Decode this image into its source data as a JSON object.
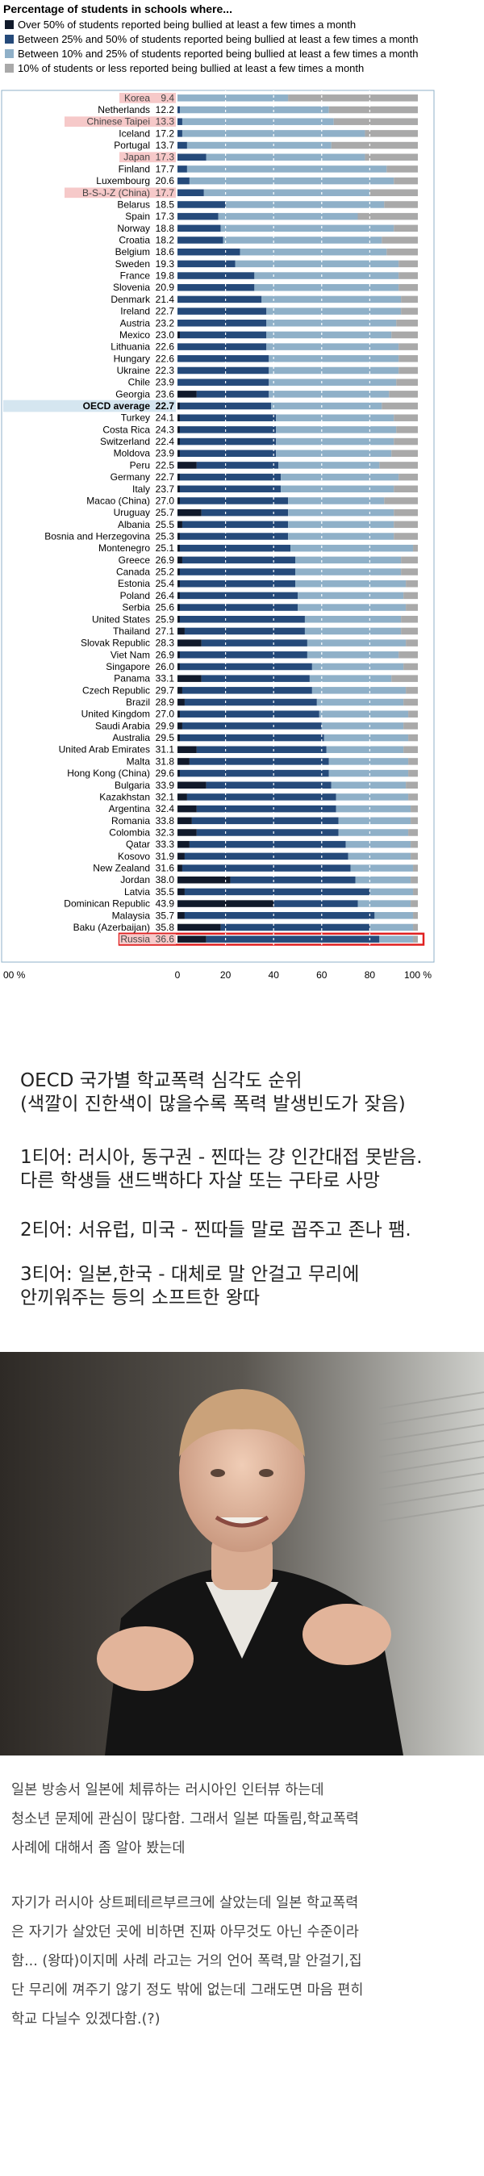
{
  "legend": {
    "title": "Percentage of students in schools where...",
    "items": [
      {
        "label": "Over 50% of students reported being bullied at least a few times a month",
        "color": "#111a2b"
      },
      {
        "label": "Between 25% and 50% of students reported being bullied at least a few times a month",
        "color": "#254a7a"
      },
      {
        "label": "Between 10% and 25% of students reported being bullied at least a few times a month",
        "color": "#8fb0c8"
      },
      {
        "label": "10% of students or less reported being bullied at least a few times a month",
        "color": "#a9a9a9"
      }
    ]
  },
  "chart_data": {
    "type": "bar",
    "orientation": "horizontal",
    "stacked": true,
    "x_ticks": [
      "0",
      "20",
      "40",
      "60",
      "80",
      "100 %"
    ],
    "left_tick": "00 %",
    "xlim": [
      0,
      100
    ],
    "series": [
      {
        "name": "Over 50% of students reported being bullied at least a few times a month",
        "color": "#111a2b"
      },
      {
        "name": "Between 25% and 50% of students reported being bullied at least a few times a month",
        "color": "#254a7a"
      },
      {
        "name": "Between 10% and 25% of students reported being bullied at least a few times a month",
        "color": "#8fb0c8"
      },
      {
        "name": "10% of students or less reported being bullied at least a few times a month",
        "color": "#a9a9a9"
      }
    ],
    "rows": [
      {
        "country": "Korea",
        "value": "9.4",
        "seg": [
          0,
          0,
          46,
          54
        ],
        "hl": "pink"
      },
      {
        "country": "Netherlands",
        "value": "12.2",
        "seg": [
          0,
          1,
          62,
          37
        ]
      },
      {
        "country": "Chinese Taipei",
        "value": "13.3",
        "seg": [
          0,
          2,
          63,
          35
        ],
        "hl": "pink"
      },
      {
        "country": "Iceland",
        "value": "17.2",
        "seg": [
          0,
          2,
          76,
          22
        ]
      },
      {
        "country": "Portugal",
        "value": "13.7",
        "seg": [
          0,
          4,
          60,
          36
        ]
      },
      {
        "country": "Japan",
        "value": "17.3",
        "seg": [
          0,
          12,
          66,
          22
        ],
        "hl": "pink"
      },
      {
        "country": "Finland",
        "value": "17.7",
        "seg": [
          0,
          4,
          83,
          13
        ]
      },
      {
        "country": "Luxembourg",
        "value": "20.6",
        "seg": [
          0,
          5,
          85,
          10
        ]
      },
      {
        "country": "B-S-J-Z (China)",
        "value": "17.7",
        "seg": [
          0,
          11,
          69,
          20
        ],
        "hl": "pink"
      },
      {
        "country": "Belarus",
        "value": "18.5",
        "seg": [
          0,
          20,
          66,
          14
        ]
      },
      {
        "country": "Spain",
        "value": "17.3",
        "seg": [
          0,
          17,
          58,
          25
        ]
      },
      {
        "country": "Norway",
        "value": "18.8",
        "seg": [
          0,
          18,
          72,
          10
        ]
      },
      {
        "country": "Croatia",
        "value": "18.2",
        "seg": [
          0,
          19,
          66,
          15
        ]
      },
      {
        "country": "Belgium",
        "value": "18.6",
        "seg": [
          0,
          26,
          61,
          13
        ]
      },
      {
        "country": "Sweden",
        "value": "19.3",
        "seg": [
          0,
          24,
          68,
          8
        ]
      },
      {
        "country": "France",
        "value": "19.8",
        "seg": [
          0,
          32,
          60,
          8
        ]
      },
      {
        "country": "Slovenia",
        "value": "20.9",
        "seg": [
          0,
          32,
          60,
          8
        ]
      },
      {
        "country": "Denmark",
        "value": "21.4",
        "seg": [
          0,
          35,
          58,
          7
        ]
      },
      {
        "country": "Ireland",
        "value": "22.7",
        "seg": [
          0,
          37,
          56,
          7
        ]
      },
      {
        "country": "Austria",
        "value": "23.2",
        "seg": [
          0,
          37,
          54,
          9
        ]
      },
      {
        "country": "Mexico",
        "value": "23.0",
        "seg": [
          1,
          36,
          52,
          11
        ]
      },
      {
        "country": "Lithuania",
        "value": "22.6",
        "seg": [
          0,
          37,
          55,
          8
        ]
      },
      {
        "country": "Hungary",
        "value": "22.6",
        "seg": [
          0,
          38,
          54,
          8
        ]
      },
      {
        "country": "Ukraine",
        "value": "22.3",
        "seg": [
          0,
          38,
          54,
          8
        ]
      },
      {
        "country": "Chile",
        "value": "23.9",
        "seg": [
          0,
          38,
          53,
          9
        ]
      },
      {
        "country": "Georgia",
        "value": "23.6",
        "seg": [
          8,
          30,
          50,
          12
        ]
      },
      {
        "country": "OECD average",
        "value": "22.7",
        "seg": [
          1,
          38,
          46,
          15
        ],
        "hl": "blue",
        "bold": true
      },
      {
        "country": "Turkey",
        "value": "24.1",
        "seg": [
          1,
          40,
          49,
          10
        ]
      },
      {
        "country": "Costa Rica",
        "value": "24.3",
        "seg": [
          1,
          40,
          50,
          9
        ]
      },
      {
        "country": "Switzerland",
        "value": "22.4",
        "seg": [
          1,
          40,
          49,
          10
        ]
      },
      {
        "country": "Moldova",
        "value": "23.9",
        "seg": [
          1,
          40,
          48,
          11
        ]
      },
      {
        "country": "Peru",
        "value": "22.5",
        "seg": [
          8,
          34,
          42,
          16
        ]
      },
      {
        "country": "Germany",
        "value": "22.7",
        "seg": [
          1,
          42,
          49,
          8
        ]
      },
      {
        "country": "Italy",
        "value": "23.7",
        "seg": [
          1,
          42,
          47,
          10
        ]
      },
      {
        "country": "Macao (China)",
        "value": "27.0",
        "seg": [
          1,
          45,
          40,
          14
        ]
      },
      {
        "country": "Uruguay",
        "value": "25.7",
        "seg": [
          10,
          36,
          44,
          10
        ]
      },
      {
        "country": "Albania",
        "value": "25.5",
        "seg": [
          2,
          44,
          44,
          10
        ]
      },
      {
        "country": "Bosnia and Herzegovina",
        "value": "25.3",
        "seg": [
          1,
          45,
          44,
          10
        ]
      },
      {
        "country": "Montenegro",
        "value": "25.1",
        "seg": [
          1,
          46,
          51,
          2
        ]
      },
      {
        "country": "Greece",
        "value": "26.9",
        "seg": [
          2,
          47,
          44,
          7
        ]
      },
      {
        "country": "Canada",
        "value": "25.2",
        "seg": [
          1,
          48,
          44,
          7
        ]
      },
      {
        "country": "Estonia",
        "value": "25.4",
        "seg": [
          1,
          48,
          46,
          5
        ]
      },
      {
        "country": "Poland",
        "value": "26.4",
        "seg": [
          1,
          49,
          44,
          6
        ]
      },
      {
        "country": "Serbia",
        "value": "25.6",
        "seg": [
          1,
          49,
          45,
          5
        ]
      },
      {
        "country": "United States",
        "value": "25.9",
        "seg": [
          1,
          52,
          40,
          7
        ]
      },
      {
        "country": "Thailand",
        "value": "27.1",
        "seg": [
          3,
          50,
          40,
          7
        ]
      },
      {
        "country": "Slovak Republic",
        "value": "28.3",
        "seg": [
          10,
          44,
          41,
          5
        ]
      },
      {
        "country": "Viet Nam",
        "value": "26.9",
        "seg": [
          1,
          53,
          38,
          8
        ]
      },
      {
        "country": "Singapore",
        "value": "26.0",
        "seg": [
          1,
          55,
          38,
          6
        ]
      },
      {
        "country": "Panama",
        "value": "33.1",
        "seg": [
          10,
          45,
          34,
          11
        ]
      },
      {
        "country": "Czech Republic",
        "value": "29.7",
        "seg": [
          2,
          54,
          39,
          5
        ]
      },
      {
        "country": "Brazil",
        "value": "28.9",
        "seg": [
          3,
          55,
          36,
          6
        ]
      },
      {
        "country": "United Kingdom",
        "value": "27.0",
        "seg": [
          1,
          58,
          37,
          4
        ]
      },
      {
        "country": "Saudi Arabia",
        "value": "29.9",
        "seg": [
          2,
          58,
          34,
          6
        ]
      },
      {
        "country": "Australia",
        "value": "29.5",
        "seg": [
          1,
          60,
          35,
          4
        ]
      },
      {
        "country": "United Arab Emirates",
        "value": "31.1",
        "seg": [
          8,
          54,
          32,
          6
        ]
      },
      {
        "country": "Malta",
        "value": "31.8",
        "seg": [
          5,
          58,
          33,
          4
        ]
      },
      {
        "country": "Hong Kong (China)",
        "value": "29.6",
        "seg": [
          1,
          62,
          33,
          4
        ]
      },
      {
        "country": "Bulgaria",
        "value": "33.9",
        "seg": [
          12,
          52,
          31,
          5
        ]
      },
      {
        "country": "Kazakhstan",
        "value": "32.1",
        "seg": [
          4,
          62,
          30,
          4
        ]
      },
      {
        "country": "Argentina",
        "value": "32.4",
        "seg": [
          8,
          58,
          31,
          3
        ]
      },
      {
        "country": "Romania",
        "value": "33.8",
        "seg": [
          6,
          61,
          30,
          3
        ]
      },
      {
        "country": "Colombia",
        "value": "32.3",
        "seg": [
          8,
          59,
          29,
          4
        ]
      },
      {
        "country": "Qatar",
        "value": "33.3",
        "seg": [
          5,
          65,
          27,
          3
        ]
      },
      {
        "country": "Kosovo",
        "value": "31.9",
        "seg": [
          3,
          68,
          26,
          3
        ]
      },
      {
        "country": "New Zealand",
        "value": "31.6",
        "seg": [
          2,
          70,
          26,
          2
        ]
      },
      {
        "country": "Jordan",
        "value": "38.0",
        "seg": [
          22,
          52,
          23,
          3
        ]
      },
      {
        "country": "Latvia",
        "value": "35.5",
        "seg": [
          3,
          77,
          18,
          2
        ]
      },
      {
        "country": "Dominican Republic",
        "value": "43.9",
        "seg": [
          40,
          35,
          22,
          3
        ]
      },
      {
        "country": "Malaysia",
        "value": "35.7",
        "seg": [
          3,
          79,
          16,
          2
        ]
      },
      {
        "country": "Baku (Azerbaijan)",
        "value": "35.8",
        "seg": [
          18,
          62,
          18,
          2
        ]
      },
      {
        "country": "Russia",
        "value": "36.6",
        "seg": [
          12,
          72,
          14,
          2
        ],
        "hl": "pink",
        "box": true
      }
    ]
  },
  "captions": [
    "OECD 국가별 학교폭력 심각도 순위\n(색깔이 진한색이 많을수록 폭력 발생빈도가 잦음)",
    "1티어: 러시아, 동구권 - 찐따는 걍 인간대접 못받음.\n다른 학생들 샌드백하다 자살 또는 구타로 사망",
    "2티어: 서유럽, 미국 - 찐따들 말로 꼽주고 존나 팸.",
    "3티어: 일본,한국 - 대체로 말 안걸고 무리에\n안끼워주는 등의 소프트한 왕따"
  ],
  "paragraphs": [
    "일본 방송서 일본에 체류하는 러시아인 인터뷰 하는데\n청소년 문제에 관심이 많다함.  그래서 일본 따돌림,학교폭력\n사례에 대해서 좀 알아 봤는데",
    "자기가 러시아 상트페테르부르크에 살았는데 일본 학교폭력\n은 자기가 살았던 곳에 비하면 진짜 아무것도 아닌 수준이라\n함... (왕따)이지메 사례 라고는 거의 언어 폭력,말 안걸기,집\n단 무리에 껴주기 않기 정도 밖에 없는데 그래도면 마음 편히\n학교 다닐수 있겠다함.(?)"
  ]
}
